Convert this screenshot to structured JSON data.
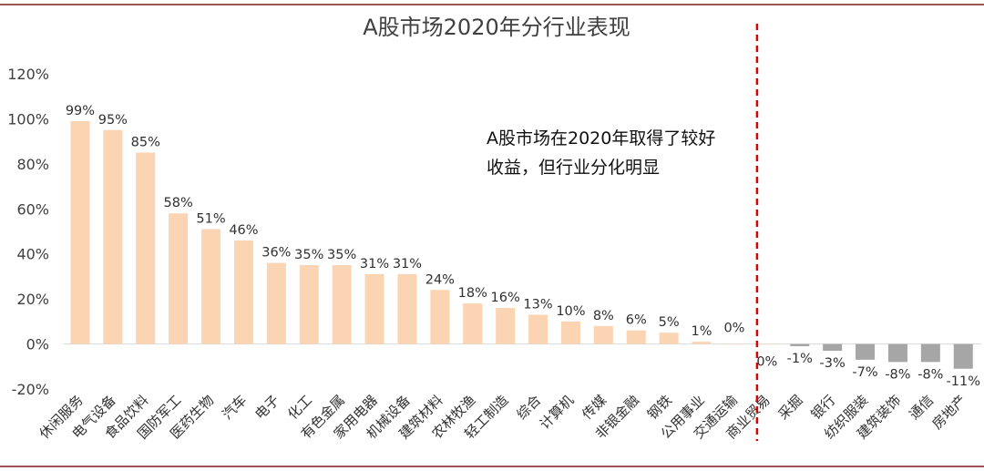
{
  "chart_data": {
    "type": "bar",
    "title": "A股市场2020年分行业表现",
    "categories": [
      "休闲服务",
      "电气设备",
      "食品饮料",
      "国防军工",
      "医药生物",
      "汽车",
      "电子",
      "化工",
      "有色金属",
      "家用电器",
      "机械设备",
      "建筑材料",
      "农林牧渔",
      "轻工制造",
      "综合",
      "计算机",
      "传媒",
      "非银金融",
      "钢铁",
      "公用事业",
      "交通运输",
      "商业贸易",
      "采掘",
      "银行",
      "纺织服装",
      "建筑装饰",
      "通信",
      "房地产"
    ],
    "values": [
      99,
      95,
      85,
      58,
      51,
      46,
      36,
      35,
      35,
      31,
      31,
      24,
      18,
      16,
      13,
      10,
      8,
      6,
      5,
      1,
      0,
      0,
      -1,
      -3,
      -7,
      -8,
      -8,
      -11
    ],
    "value_labels": [
      "99%",
      "95%",
      "85%",
      "58%",
      "51%",
      "46%",
      "36%",
      "35%",
      "35%",
      "31%",
      "31%",
      "24%",
      "18%",
      "16%",
      "13%",
      "10%",
      "8%",
      "6%",
      "5%",
      "1%",
      "0%",
      "0%",
      "-1%",
      "-3%",
      "-7%",
      "-8%",
      "-8%",
      "-11%"
    ],
    "ylim": [
      -20,
      120
    ],
    "yticks": [
      -20,
      0,
      20,
      40,
      60,
      80,
      100,
      120
    ],
    "ytick_labels": [
      "-20%",
      "0%",
      "20%",
      "40%",
      "60%",
      "80%",
      "100%",
      "120%"
    ],
    "xlabel": "",
    "ylabel": "",
    "grid": false,
    "positive_color": "#FBD4B4",
    "negative_color": "#A6A6A6",
    "divider_color": "#E00000",
    "divider_after_index": 21,
    "annotation": {
      "lines": [
        "A股市场在2020年取得了较好",
        "收益，但行业分化明显"
      ]
    }
  }
}
